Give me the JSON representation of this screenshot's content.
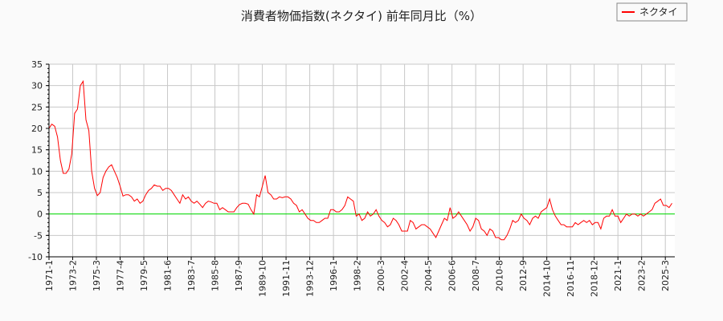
{
  "chart_data": {
    "type": "line",
    "title": "消費者物価指数(ネクタイ) 前年同月比（%）",
    "xlabel": "",
    "ylabel": "",
    "ylim": [
      -10,
      35
    ],
    "yticks": [
      -10,
      -5,
      0,
      5,
      10,
      15,
      20,
      25,
      30,
      35
    ],
    "xlim": [
      "1971-1",
      "2026-1"
    ],
    "xticks": [
      "1971-1",
      "1973-2",
      "1975-3",
      "1977-4",
      "1979-5",
      "1981-6",
      "1983-7",
      "1985-8",
      "1987-9",
      "1989-10",
      "1991-11",
      "1993-12",
      "1996-1",
      "1998-2",
      "2000-3",
      "2002-4",
      "2004-5",
      "2006-6",
      "2008-7",
      "2010-8",
      "2012-9",
      "2014-10",
      "2016-11",
      "2018-12",
      "2021-1",
      "2023-2",
      "2025-3"
    ],
    "grid": true,
    "legend_position": "top-right",
    "zero_line_color": "#00dd00",
    "series": [
      {
        "name": "ネクタイ",
        "color": "#ff0000",
        "x": [
          "1971-1",
          "1971-4",
          "1971-7",
          "1971-10",
          "1972-1",
          "1972-4",
          "1972-7",
          "1972-10",
          "1973-1",
          "1973-4",
          "1973-7",
          "1973-10",
          "1974-1",
          "1974-4",
          "1974-7",
          "1974-10",
          "1975-1",
          "1975-4",
          "1975-7",
          "1975-10",
          "1976-1",
          "1976-4",
          "1976-7",
          "1976-10",
          "1977-1",
          "1977-4",
          "1977-7",
          "1977-10",
          "1978-1",
          "1978-4",
          "1978-7",
          "1978-10",
          "1979-1",
          "1979-4",
          "1979-7",
          "1979-10",
          "1980-1",
          "1980-4",
          "1980-7",
          "1980-10",
          "1981-1",
          "1981-4",
          "1981-7",
          "1981-10",
          "1982-1",
          "1982-4",
          "1982-7",
          "1982-10",
          "1983-1",
          "1983-4",
          "1983-7",
          "1983-10",
          "1984-1",
          "1984-4",
          "1984-7",
          "1984-10",
          "1985-1",
          "1985-4",
          "1985-7",
          "1985-10",
          "1986-1",
          "1986-4",
          "1986-7",
          "1986-10",
          "1987-1",
          "1987-4",
          "1987-7",
          "1987-10",
          "1988-1",
          "1988-4",
          "1988-7",
          "1988-10",
          "1989-1",
          "1989-4",
          "1989-7",
          "1989-10",
          "1990-1",
          "1990-4",
          "1990-7",
          "1990-10",
          "1991-1",
          "1991-4",
          "1991-7",
          "1991-10",
          "1992-1",
          "1992-4",
          "1992-7",
          "1992-10",
          "1993-1",
          "1993-4",
          "1993-7",
          "1993-10",
          "1994-1",
          "1994-4",
          "1994-7",
          "1994-10",
          "1995-1",
          "1995-4",
          "1995-7",
          "1995-10",
          "1996-1",
          "1996-4",
          "1996-7",
          "1996-10",
          "1997-1",
          "1997-4",
          "1997-7",
          "1997-10",
          "1998-1",
          "1998-4",
          "1998-7",
          "1998-10",
          "1999-1",
          "1999-4",
          "1999-7",
          "1999-10",
          "2000-1",
          "2000-4",
          "2000-7",
          "2000-10",
          "2001-1",
          "2001-4",
          "2001-7",
          "2001-10",
          "2002-1",
          "2002-4",
          "2002-7",
          "2002-10",
          "2003-1",
          "2003-4",
          "2003-7",
          "2003-10",
          "2004-1",
          "2004-4",
          "2004-7",
          "2004-10",
          "2005-1",
          "2005-4",
          "2005-7",
          "2005-10",
          "2006-1",
          "2006-4",
          "2006-7",
          "2006-10",
          "2007-1",
          "2007-4",
          "2007-7",
          "2007-10",
          "2008-1",
          "2008-4",
          "2008-7",
          "2008-10",
          "2009-1",
          "2009-4",
          "2009-7",
          "2009-10",
          "2010-1",
          "2010-4",
          "2010-7",
          "2010-10",
          "2011-1",
          "2011-4",
          "2011-7",
          "2011-10",
          "2012-1",
          "2012-4",
          "2012-7",
          "2012-10",
          "2013-1",
          "2013-4",
          "2013-7",
          "2013-10",
          "2014-1",
          "2014-4",
          "2014-7",
          "2014-10",
          "2015-1",
          "2015-4",
          "2015-7",
          "2015-10",
          "2016-1",
          "2016-4",
          "2016-7",
          "2016-10",
          "2017-1",
          "2017-4",
          "2017-7",
          "2017-10",
          "2018-1",
          "2018-4",
          "2018-7",
          "2018-10",
          "2019-1",
          "2019-4",
          "2019-7",
          "2019-10",
          "2020-1",
          "2020-4",
          "2020-7",
          "2020-10",
          "2021-1",
          "2021-4",
          "2021-7",
          "2021-10",
          "2022-1",
          "2022-4",
          "2022-7",
          "2022-10",
          "2023-1",
          "2023-4",
          "2023-7",
          "2023-10",
          "2024-1",
          "2024-4",
          "2024-7",
          "2024-10",
          "2025-1",
          "2025-4",
          "2025-7",
          "2025-10"
        ],
        "values": [
          20,
          21,
          20.5,
          18,
          12.5,
          9.5,
          9.5,
          10.5,
          14,
          23.5,
          24.5,
          30,
          31,
          22,
          19.5,
          10,
          6,
          4.3,
          5,
          8.5,
          10,
          11,
          11.5,
          10,
          8.5,
          6.5,
          4.2,
          4.5,
          4.5,
          4,
          3,
          3.5,
          2.5,
          3,
          4.5,
          5.5,
          6,
          6.8,
          6.5,
          6.5,
          5.5,
          6,
          6,
          5.5,
          4.5,
          3.5,
          2.5,
          4.5,
          3.5,
          4,
          3,
          2.5,
          3,
          2.3,
          1.5,
          2.5,
          3,
          2.8,
          2.5,
          2.5,
          1,
          1.5,
          1,
          0.5,
          0.5,
          0.5,
          1.5,
          2.2,
          2.5,
          2.5,
          2.3,
          1,
          0,
          4.5,
          4,
          6.5,
          9,
          5,
          4.5,
          3.5,
          3.5,
          4,
          3.8,
          4,
          4,
          3.5,
          2.5,
          2,
          0.5,
          1,
          0,
          -1,
          -1.5,
          -1.5,
          -2,
          -2,
          -1.5,
          -1,
          -1,
          1,
          1,
          0.5,
          0.5,
          1,
          2,
          4,
          3.5,
          3,
          -0.5,
          0,
          -1.5,
          -1,
          0.5,
          -0.5,
          0,
          1,
          -0.5,
          -1.5,
          -2,
          -3,
          -2.5,
          -1,
          -1.5,
          -2.5,
          -4,
          -4,
          -4,
          -1.5,
          -2,
          -3.5,
          -3,
          -2.5,
          -2.5,
          -3,
          -3.5,
          -4.5,
          -5.5,
          -4,
          -2.5,
          -1,
          -1.5,
          1.5,
          -1,
          -0.5,
          0.5,
          -0.5,
          -1.5,
          -2.5,
          -4,
          -3,
          -1,
          -1.5,
          -3.5,
          -4,
          -5,
          -3.5,
          -4,
          -5.5,
          -5.5,
          -6,
          -6,
          -5,
          -3.5,
          -1.5,
          -2,
          -1.5,
          0,
          -1,
          -1.5,
          -2.5,
          -1,
          -0.5,
          -1,
          0.5,
          1,
          1.5,
          3.5,
          1,
          -0.5,
          -1.5,
          -2.5,
          -2.5,
          -3,
          -3,
          -3,
          -2,
          -2.5,
          -2,
          -1.5,
          -2,
          -1.5,
          -2.5,
          -2,
          -2,
          -3.5,
          -1,
          -0.5,
          -0.5,
          1,
          -0.5,
          -0.5,
          -2,
          -1,
          0,
          -0.5,
          0,
          0,
          -0.5,
          0,
          -0.5,
          0,
          0.5,
          1,
          2.5,
          3,
          3.5,
          2,
          2,
          1.5,
          2.5
        ]
      }
    ]
  }
}
